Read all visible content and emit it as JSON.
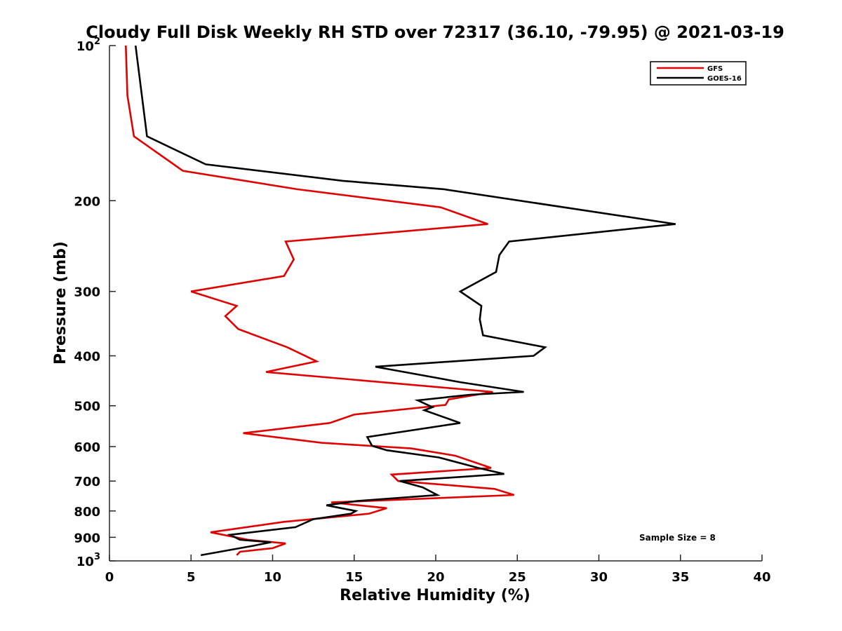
{
  "chart_data": {
    "type": "line",
    "title": "Cloudy Full Disk Weekly RH STD over 72317 (36.10, -79.95) @ 2021-03-19",
    "xlabel": "Relative Humidity (%)",
    "ylabel": "Pressure (mb)",
    "xlim": [
      0,
      40
    ],
    "ylim": [
      100,
      1000
    ],
    "y_scale": "log",
    "y_reversed": true,
    "x_ticks": [
      "0",
      "5",
      "10",
      "15",
      "20",
      "25",
      "30",
      "35",
      "40"
    ],
    "y_ticks": [
      {
        "value": 100,
        "base": "10",
        "exp": "2"
      },
      {
        "value": 200,
        "label": "200"
      },
      {
        "value": 300,
        "label": "300"
      },
      {
        "value": 400,
        "label": "400"
      },
      {
        "value": 500,
        "label": "500"
      },
      {
        "value": 600,
        "label": "600"
      },
      {
        "value": 700,
        "label": "700"
      },
      {
        "value": 800,
        "label": "800"
      },
      {
        "value": 900,
        "label": "900"
      },
      {
        "value": 1000,
        "base": "10",
        "exp": "3"
      }
    ],
    "legend_position": "top-right",
    "annotation": "Sample Size = 8",
    "series": [
      {
        "name": "GFS",
        "color": "#e00000",
        "points": [
          [
            1.0,
            100
          ],
          [
            1.1,
            125
          ],
          [
            1.5,
            150
          ],
          [
            4.5,
            175
          ],
          [
            11.5,
            190
          ],
          [
            20.3,
            206
          ],
          [
            23.2,
            222
          ],
          [
            10.8,
            240
          ],
          [
            11.3,
            260
          ],
          [
            10.7,
            280
          ],
          [
            5.0,
            300
          ],
          [
            7.8,
            320
          ],
          [
            7.1,
            335
          ],
          [
            7.9,
            355
          ],
          [
            10.9,
            385
          ],
          [
            12.7,
            410
          ],
          [
            9.6,
            430
          ],
          [
            23.5,
            470
          ],
          [
            20.8,
            486
          ],
          [
            20.6,
            498
          ],
          [
            15.0,
            520
          ],
          [
            13.5,
            540
          ],
          [
            8.2,
            565
          ],
          [
            13.0,
            590
          ],
          [
            18.5,
            605
          ],
          [
            21.2,
            625
          ],
          [
            23.4,
            660
          ],
          [
            17.3,
            680
          ],
          [
            17.7,
            700
          ],
          [
            23.6,
            725
          ],
          [
            24.8,
            745
          ],
          [
            13.6,
            770
          ],
          [
            17.0,
            790
          ],
          [
            15.9,
            810
          ],
          [
            10.7,
            840
          ],
          [
            6.2,
            880
          ],
          [
            8.5,
            910
          ],
          [
            10.8,
            925
          ],
          [
            10.0,
            945
          ],
          [
            8.0,
            960
          ],
          [
            7.8,
            975
          ]
        ]
      },
      {
        "name": "GOES-16",
        "color": "#000000",
        "points": [
          [
            1.6,
            100
          ],
          [
            2.3,
            150
          ],
          [
            5.9,
            170
          ],
          [
            14.3,
            183
          ],
          [
            20.5,
            190
          ],
          [
            34.7,
            222
          ],
          [
            24.5,
            240
          ],
          [
            23.9,
            255
          ],
          [
            23.7,
            275
          ],
          [
            21.5,
            300
          ],
          [
            22.8,
            320
          ],
          [
            22.7,
            340
          ],
          [
            22.9,
            365
          ],
          [
            26.7,
            385
          ],
          [
            26.0,
            400
          ],
          [
            16.3,
            420
          ],
          [
            21.5,
            450
          ],
          [
            25.4,
            470
          ],
          [
            22.1,
            476
          ],
          [
            18.9,
            488
          ],
          [
            19.8,
            503
          ],
          [
            19.3,
            510
          ],
          [
            21.5,
            540
          ],
          [
            15.8,
            575
          ],
          [
            16.1,
            598
          ],
          [
            17.0,
            610
          ],
          [
            20.2,
            630
          ],
          [
            22.6,
            660
          ],
          [
            24.2,
            678
          ],
          [
            17.8,
            700
          ],
          [
            19.2,
            720
          ],
          [
            20.1,
            745
          ],
          [
            15.2,
            765
          ],
          [
            13.3,
            780
          ],
          [
            15.1,
            800
          ],
          [
            14.8,
            810
          ],
          [
            12.5,
            830
          ],
          [
            11.4,
            860
          ],
          [
            7.4,
            890
          ],
          [
            8.0,
            910
          ],
          [
            9.9,
            920
          ],
          [
            8.8,
            935
          ],
          [
            5.6,
            975
          ]
        ]
      }
    ]
  }
}
